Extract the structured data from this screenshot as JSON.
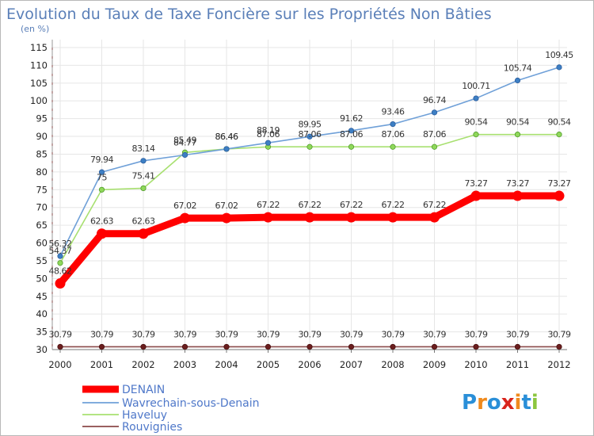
{
  "chart_data": {
    "type": "line",
    "title": "Evolution du Taux de Taxe Foncière sur les Propriétés Non Bâties",
    "unit_label": "(en %)",
    "x": [
      "2000",
      "2001",
      "2002",
      "2003",
      "2004",
      "2005",
      "2006",
      "2007",
      "2008",
      "2009",
      "2010",
      "2011",
      "2012"
    ],
    "ylim": [
      30,
      115
    ],
    "yticks": [
      30,
      35,
      40,
      45,
      50,
      55,
      60,
      65,
      70,
      75,
      80,
      85,
      90,
      95,
      100,
      105,
      110,
      115
    ],
    "grid": true,
    "legend_position": "bottom-left",
    "series": [
      {
        "name": "DENAIN",
        "color": "#ff0000",
        "values": [
          48.62,
          62.63,
          62.63,
          67.02,
          67.02,
          67.22,
          67.22,
          67.22,
          67.22,
          67.22,
          73.27,
          73.27,
          73.27
        ],
        "labels": [
          "48.62",
          "62.63",
          "62.63",
          "67.02",
          "67.02",
          "67.22",
          "67.22",
          "67.22",
          "67.22",
          "67.22",
          "73.27",
          "73.27",
          "73.27"
        ]
      },
      {
        "name": "Wavrechain-sous-Denain",
        "color": "#6fa0d8",
        "values": [
          56.32,
          79.94,
          83.14,
          84.77,
          86.46,
          88.19,
          89.95,
          91.62,
          93.46,
          96.74,
          100.71,
          105.74,
          109.45
        ],
        "labels": [
          "56.32",
          "79.94",
          "83.14",
          "84.77",
          "86.46",
          "88.19",
          "89.95",
          "91.62",
          "93.46",
          "96.74",
          "100.71",
          "105.74",
          "109.45"
        ]
      },
      {
        "name": "Haveluy",
        "color": "#a8e070",
        "values": [
          54.37,
          75,
          75.41,
          85.49,
          86.46,
          87.06,
          87.06,
          87.06,
          87.06,
          87.06,
          90.54,
          90.54,
          90.54
        ],
        "labels": [
          "54.37",
          "75",
          "75.41",
          "85.49",
          "86.46",
          "87.06",
          "87.06",
          "87.06",
          "87.06",
          "87.06",
          "90.54",
          "90.54",
          "90.54"
        ]
      },
      {
        "name": "Rouvignies",
        "color": "#8b4a4a",
        "values": [
          30.79,
          30.79,
          30.79,
          30.79,
          30.79,
          30.79,
          30.79,
          30.79,
          30.79,
          30.79,
          30.79,
          30.79,
          30.79
        ],
        "labels": [
          "30.79",
          "30.79",
          "30.79",
          "30.79",
          "30.79",
          "30.79",
          "30.79",
          "30.79",
          "30.79",
          "30.79",
          "30.79",
          "30.79",
          "30.79"
        ]
      }
    ]
  },
  "logo": {
    "text": "Proxiti",
    "letters": [
      {
        "ch": "P",
        "color": "#2a8fd8"
      },
      {
        "ch": "r",
        "color": "#f08a1c"
      },
      {
        "ch": "o",
        "color": "#2a8fd8"
      },
      {
        "ch": "x",
        "color": "#d8241c"
      },
      {
        "ch": "i",
        "color": "#f08a1c"
      },
      {
        "ch": "t",
        "color": "#2a8fd8"
      },
      {
        "ch": "i",
        "color": "#8cc63f"
      }
    ]
  }
}
